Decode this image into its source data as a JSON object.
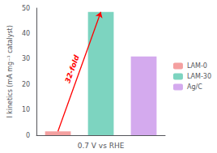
{
  "chart_data": {
    "type": "bar",
    "categories": [
      "LAM-0",
      "LAM-30",
      "Ag/C"
    ],
    "values": [
      1.5,
      48.5,
      31.0
    ],
    "colors": [
      "#f4a0a0",
      "#7dd4c0",
      "#d4aaee"
    ],
    "xlabel": "0.7 V vs RHE",
    "ylabel": "I kinetics (mA mg⁻¹ catalyst)",
    "ylim": [
      0,
      50
    ],
    "yticks": [
      0,
      10,
      20,
      30,
      40,
      50
    ],
    "grid": false,
    "legend": "right",
    "tick_labels": "y",
    "annotations": [
      {
        "text": "32-fold",
        "color": "#ff0000",
        "from": "LAM-0",
        "to": "LAM-30"
      }
    ]
  }
}
